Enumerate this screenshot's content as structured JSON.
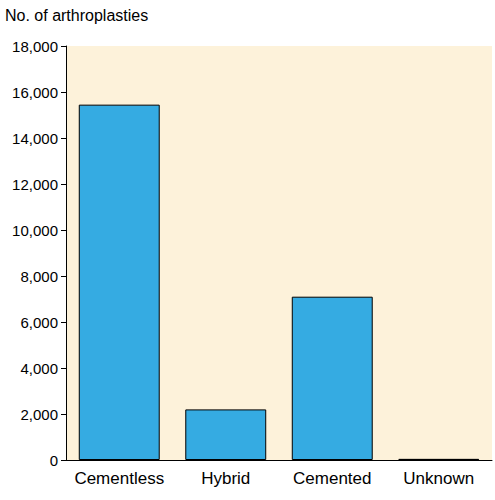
{
  "chart_data": {
    "type": "bar",
    "y_label": "No. of arthroplasties",
    "categories": [
      "Cementless",
      "Hybrid",
      "Cemented",
      "Unknown"
    ],
    "values": [
      15450,
      2200,
      7100,
      50
    ],
    "color": "#35ABE2",
    "ylim": [
      0,
      18000
    ],
    "yticks": [
      0,
      {
        "value": 2000,
        "label": "2,000"
      },
      {
        "value": 4000,
        "label": "4,000"
      },
      {
        "value": 6000,
        "label": "6,000"
      },
      {
        "value": 8000,
        "label": "8,000"
      },
      {
        "value": 10000,
        "label": "10,000"
      },
      {
        "value": 12000,
        "label": "12,000"
      },
      {
        "value": 14000,
        "label": "14,000"
      },
      {
        "value": 16000,
        "label": "16,000"
      },
      {
        "value": 18000,
        "label": "18,000"
      }
    ],
    "grid": false
  }
}
